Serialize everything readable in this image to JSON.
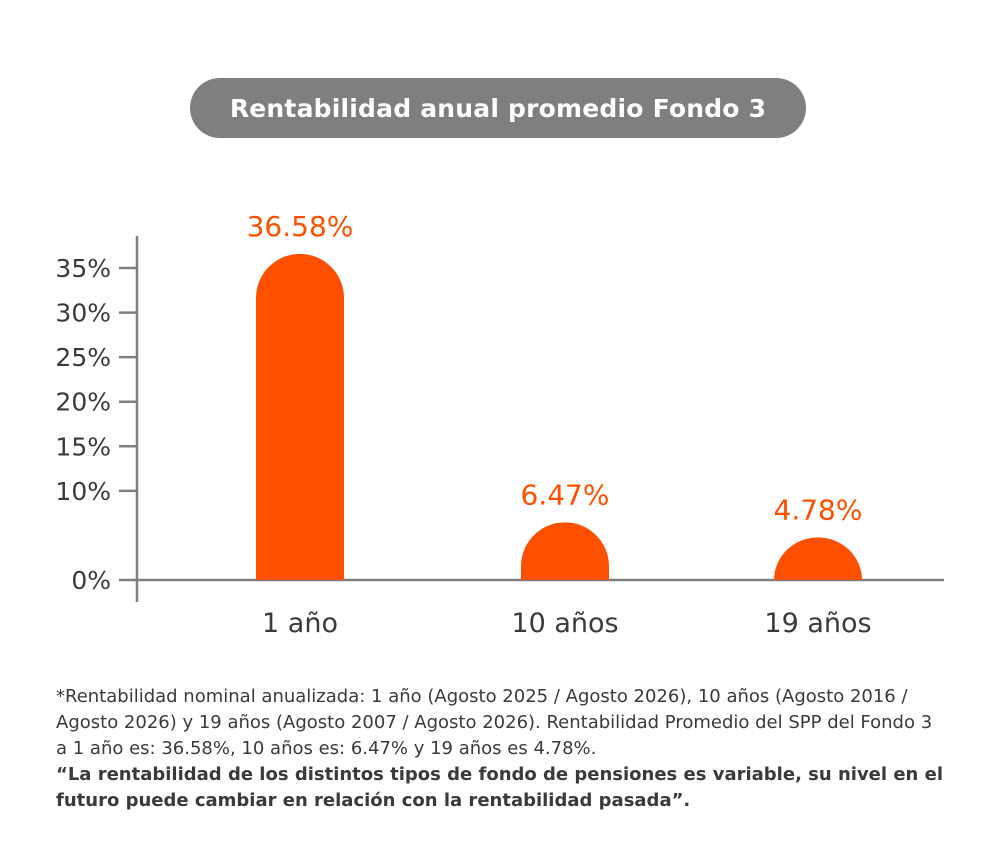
{
  "title": "Rentabilidad anual promedio Fondo 3",
  "chart_data": {
    "type": "bar",
    "categories": [
      "1 año",
      "10 años",
      "19 años"
    ],
    "values": [
      36.58,
      6.47,
      4.78
    ],
    "value_labels": [
      "36.58%",
      "6.47%",
      "4.78%"
    ],
    "yticks": [
      0,
      10,
      15,
      20,
      25,
      30,
      35
    ],
    "ytick_labels": [
      "0%",
      "10%",
      "15%",
      "20%",
      "25%",
      "30%",
      "35%"
    ],
    "ylim": [
      0,
      38
    ],
    "bar_color": "#ff5000",
    "axis_color": "#7d7f80",
    "grid": false
  },
  "footnote": {
    "note": "*Rentabilidad nominal anualizada: 1 año (Agosto 2025 / Agosto 2026), 10 años (Agosto 2016 / Agosto 2026) y 19 años (Agosto 2007 / Agosto 2026). Rentabilidad Promedio del SPP del Fondo 3 a 1 año es: 36.58%, 10 años es: 6.47% y 19 años es 4.78%.",
    "quote": "“La rentabilidad de los distintos tipos de fondo de pensiones es variable, su nivel en el futuro puede cambiar en relación con la rentabilidad pasada”."
  }
}
